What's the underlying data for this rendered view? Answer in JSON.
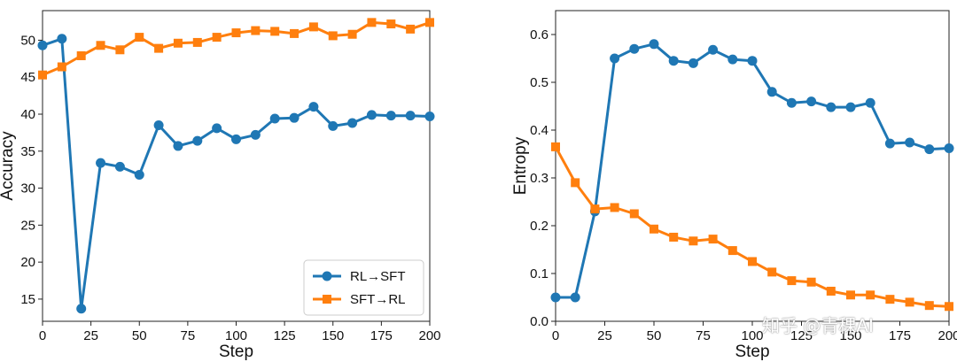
{
  "chart_data": [
    {
      "type": "line",
      "xlabel": "Step",
      "ylabel": "Accuracy",
      "xlim": [
        0,
        200
      ],
      "ylim": [
        12,
        54
      ],
      "xticks": [
        0,
        25,
        50,
        75,
        100,
        125,
        150,
        175,
        200
      ],
      "yticks": [
        15,
        20,
        25,
        30,
        35,
        40,
        45,
        50
      ],
      "grid": false,
      "legend": "lower-right",
      "series": [
        {
          "name": "RL→SFT",
          "color": "#1f77b4",
          "marker": "circle",
          "x": [
            0,
            10,
            20,
            30,
            40,
            50,
            60,
            70,
            80,
            90,
            100,
            110,
            120,
            130,
            140,
            150,
            160,
            170,
            180,
            190,
            200
          ],
          "y": [
            49.3,
            50.2,
            13.7,
            33.4,
            32.9,
            31.8,
            38.5,
            35.7,
            36.4,
            38.1,
            36.6,
            37.2,
            39.4,
            39.5,
            41.0,
            38.4,
            38.8,
            39.9,
            39.8,
            39.8,
            39.7
          ]
        },
        {
          "name": "SFT→RL",
          "color": "#ff7f0e",
          "marker": "square",
          "x": [
            0,
            10,
            20,
            30,
            40,
            50,
            60,
            70,
            80,
            90,
            100,
            110,
            120,
            130,
            140,
            150,
            160,
            170,
            180,
            190,
            200
          ],
          "y": [
            45.3,
            46.4,
            47.9,
            49.3,
            48.7,
            50.4,
            48.9,
            49.6,
            49.7,
            50.4,
            51.0,
            51.3,
            51.2,
            50.9,
            51.8,
            50.6,
            50.8,
            52.4,
            52.2,
            51.5,
            52.4
          ]
        }
      ]
    },
    {
      "type": "line",
      "xlabel": "Step",
      "ylabel": "Entropy",
      "xlim": [
        0,
        200
      ],
      "ylim": [
        0,
        0.65
      ],
      "xticks": [
        0,
        25,
        50,
        75,
        100,
        125,
        150,
        175,
        200
      ],
      "yticks": [
        0.0,
        0.1,
        0.2,
        0.3,
        0.4,
        0.5,
        0.6
      ],
      "ytick_labels": [
        "0.0",
        "0.1",
        "0.2",
        "0.3",
        "0.4",
        "0.5",
        "0.6"
      ],
      "grid": false,
      "series": [
        {
          "color": "#1f77b4",
          "marker": "circle",
          "x": [
            0,
            10,
            20,
            30,
            40,
            50,
            60,
            70,
            80,
            90,
            100,
            110,
            120,
            130,
            140,
            150,
            160,
            170,
            180,
            190,
            200
          ],
          "y": [
            0.05,
            0.05,
            0.23,
            0.55,
            0.57,
            0.58,
            0.545,
            0.54,
            0.568,
            0.548,
            0.545,
            0.48,
            0.457,
            0.46,
            0.448,
            0.448,
            0.457,
            0.372,
            0.374,
            0.36,
            0.362
          ]
        },
        {
          "color": "#ff7f0e",
          "marker": "square",
          "x": [
            0,
            10,
            20,
            30,
            40,
            50,
            60,
            70,
            80,
            90,
            100,
            110,
            120,
            130,
            140,
            150,
            160,
            170,
            180,
            190,
            200
          ],
          "y": [
            0.365,
            0.29,
            0.235,
            0.238,
            0.225,
            0.193,
            0.176,
            0.168,
            0.172,
            0.148,
            0.125,
            0.103,
            0.085,
            0.082,
            0.063,
            0.055,
            0.055,
            0.046,
            0.04,
            0.033,
            0.031
          ]
        }
      ]
    }
  ],
  "watermark": "知乎 @青稞AI"
}
